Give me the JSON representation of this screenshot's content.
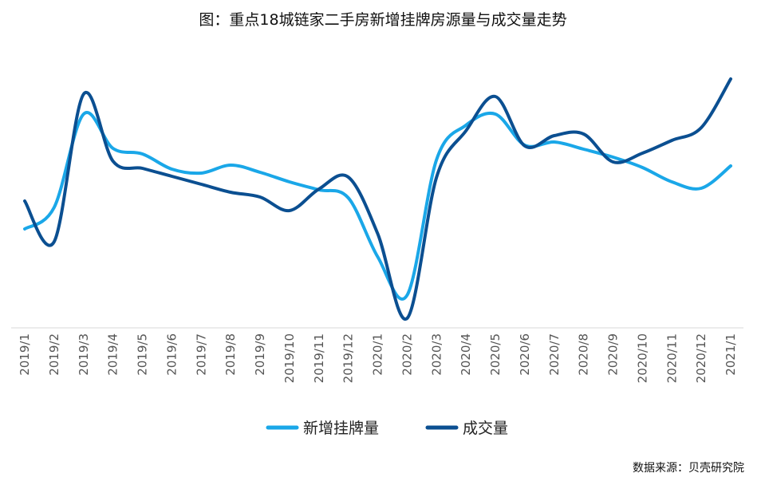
{
  "chart_data": {
    "type": "line",
    "title": "图：重点18城链家二手房新增挂牌房源量与成交量走势",
    "categories": [
      "2019/1",
      "2019/2",
      "2019/3",
      "2019/4",
      "2019/5",
      "2019/6",
      "2019/7",
      "2019/8",
      "2019/9",
      "2019/10",
      "2019/11",
      "2019/12",
      "2020/1",
      "2020/2",
      "2020/3",
      "2020/4",
      "2020/5",
      "2020/6",
      "2020/7",
      "2020/8",
      "2020/9",
      "2020/10",
      "2020/11",
      "2020/12",
      "2021/1"
    ],
    "series": [
      {
        "name": "新增挂牌量",
        "color": "#1aa7e8",
        "values": [
          287,
          260,
          143,
          186,
          193,
          212,
          217,
          207,
          216,
          228,
          238,
          248,
          322,
          370,
          200,
          157,
          143,
          182,
          178,
          187,
          197,
          210,
          228,
          236,
          208
        ]
      },
      {
        "name": "成交量",
        "color": "#0b4f91",
        "values": [
          252,
          303,
          118,
          202,
          211,
          221,
          231,
          241,
          247,
          264,
          237,
          222,
          293,
          399,
          222,
          164,
          121,
          183,
          170,
          168,
          203,
          192,
          176,
          160,
          99
        ]
      }
    ],
    "yaxis_visible": false,
    "ylim_inverted_note": "",
    "xlabel": "",
    "ylabel": "",
    "legend": "bottom-center",
    "grid": false
  },
  "source_text": "数据来源：贝壳研究院"
}
